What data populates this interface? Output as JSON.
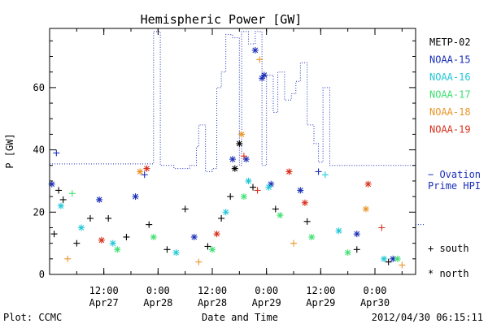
{
  "chart_data": {
    "type": "scatter",
    "title": "Hemispheric Power [GW]",
    "xlabel": "Date and Time",
    "ylabel": "P [GW]",
    "ylim": [
      0,
      79
    ],
    "xlim": [
      "2012-04-27 00:00",
      "2012-04-30 09:00"
    ],
    "x_ticks": [
      {
        "x": "2012-04-27 12:00",
        "time": "12:00",
        "date": "Apr27"
      },
      {
        "x": "2012-04-28 00:00",
        "time": "0:00",
        "date": "Apr28"
      },
      {
        "x": "2012-04-28 12:00",
        "time": "12:00",
        "date": "Apr28"
      },
      {
        "x": "2012-04-29 00:00",
        "time": "0:00",
        "date": "Apr29"
      },
      {
        "x": "2012-04-29 12:00",
        "time": "12:00",
        "date": "Apr29"
      },
      {
        "x": "2012-04-30 00:00",
        "time": "0:00",
        "date": "Apr30"
      }
    ],
    "y_ticks": [
      0,
      20,
      40,
      60
    ],
    "grid": false,
    "legend_position": "right",
    "series": [
      {
        "name": "METP-02",
        "color": "#000000",
        "points": [
          [
            "2012-04-27 02:00",
            27,
            "+"
          ],
          [
            "2012-04-27 03:00",
            24,
            "+"
          ],
          [
            "2012-04-27 01:00",
            13,
            "+"
          ],
          [
            "2012-04-27 09:00",
            18,
            "+"
          ],
          [
            "2012-04-27 13:00",
            18,
            "+"
          ],
          [
            "2012-04-27 17:00",
            12,
            "+"
          ],
          [
            "2012-04-27 22:00",
            16,
            "+"
          ],
          [
            "2012-04-28 06:00",
            21,
            "+"
          ],
          [
            "2012-04-28 14:00",
            18,
            "+"
          ],
          [
            "2012-04-28 17:00",
            34,
            "*"
          ],
          [
            "2012-04-28 18:00",
            42,
            "*"
          ],
          [
            "2012-04-28 16:00",
            25,
            "+"
          ],
          [
            "2012-04-28 21:00",
            28,
            "+"
          ],
          [
            "2012-04-29 02:00",
            21,
            "+"
          ],
          [
            "2012-04-29 09:00",
            17,
            "+"
          ],
          [
            "2012-04-29 20:00",
            8,
            "+"
          ],
          [
            "2012-04-30 03:00",
            4,
            "+"
          ],
          [
            "2012-04-27 06:00",
            10,
            "+"
          ],
          [
            "2012-04-28 02:00",
            8,
            "+"
          ],
          [
            "2012-04-28 11:00",
            9,
            "+"
          ]
        ]
      },
      {
        "name": "NOAA-15",
        "color": "#1b2fb8",
        "points": [
          [
            "2012-04-27 00:30",
            29,
            "*"
          ],
          [
            "2012-04-27 01:30",
            39,
            "+"
          ],
          [
            "2012-04-27 11:00",
            24,
            "*"
          ],
          [
            "2012-04-27 19:00",
            25,
            "*"
          ],
          [
            "2012-04-27 21:00",
            32,
            "+"
          ],
          [
            "2012-04-28 08:00",
            12,
            "*"
          ],
          [
            "2012-04-28 16:30",
            37,
            "*"
          ],
          [
            "2012-04-28 19:30",
            37,
            "*"
          ],
          [
            "2012-04-28 21:30",
            72,
            "*"
          ],
          [
            "2012-04-28 23:00",
            63,
            "*"
          ],
          [
            "2012-04-28 23:30",
            64,
            "*"
          ],
          [
            "2012-04-29 01:00",
            29,
            "*"
          ],
          [
            "2012-04-29 07:30",
            27,
            "*"
          ],
          [
            "2012-04-29 11:30",
            33,
            "+"
          ],
          [
            "2012-04-29 20:00",
            13,
            "*"
          ],
          [
            "2012-04-30 04:00",
            5,
            "*"
          ]
        ]
      },
      {
        "name": "NOAA-16",
        "color": "#22c8d8",
        "points": [
          [
            "2012-04-27 07:00",
            15,
            "*"
          ],
          [
            "2012-04-27 14:00",
            10,
            "*"
          ],
          [
            "2012-04-28 04:00",
            7,
            "*"
          ],
          [
            "2012-04-28 15:00",
            20,
            "*"
          ],
          [
            "2012-04-28 20:00",
            30,
            "*"
          ],
          [
            "2012-04-29 00:30",
            28,
            "*"
          ],
          [
            "2012-04-29 13:00",
            32,
            "+"
          ],
          [
            "2012-04-29 16:00",
            14,
            "*"
          ],
          [
            "2012-04-30 02:00",
            5,
            "*"
          ],
          [
            "2012-04-27 02:30",
            22,
            "*"
          ]
        ]
      },
      {
        "name": "NOAA-17",
        "color": "#3ee070",
        "points": [
          [
            "2012-04-27 05:00",
            26,
            "+"
          ],
          [
            "2012-04-27 15:00",
            8,
            "*"
          ],
          [
            "2012-04-27 23:00",
            12,
            "*"
          ],
          [
            "2012-04-28 12:00",
            8,
            "*"
          ],
          [
            "2012-04-28 19:00",
            25,
            "*"
          ],
          [
            "2012-04-29 03:00",
            19,
            "*"
          ],
          [
            "2012-04-29 10:00",
            12,
            "*"
          ],
          [
            "2012-04-29 18:00",
            7,
            "*"
          ],
          [
            "2012-04-30 05:00",
            5,
            "*"
          ]
        ]
      },
      {
        "name": "NOAA-18",
        "color": "#e8962a",
        "points": [
          [
            "2012-04-27 20:00",
            33,
            "*"
          ],
          [
            "2012-04-28 18:30",
            45,
            "*"
          ],
          [
            "2012-04-28 22:30",
            69,
            "+"
          ],
          [
            "2012-04-29 22:00",
            21,
            "*"
          ],
          [
            "2012-04-27 04:00",
            5,
            "+"
          ],
          [
            "2012-04-28 09:00",
            4,
            "+"
          ],
          [
            "2012-04-29 06:00",
            10,
            "+"
          ],
          [
            "2012-04-30 06:00",
            3,
            "+"
          ]
        ]
      },
      {
        "name": "NOAA-19",
        "color": "#d8301c",
        "points": [
          [
            "2012-04-27 21:30",
            34,
            "*"
          ],
          [
            "2012-04-28 19:00",
            38,
            "+"
          ],
          [
            "2012-04-28 22:00",
            27,
            "+"
          ],
          [
            "2012-04-29 05:00",
            33,
            "*"
          ],
          [
            "2012-04-29 08:30",
            23,
            "*"
          ],
          [
            "2012-04-29 22:30",
            29,
            "*"
          ],
          [
            "2012-04-30 01:30",
            15,
            "+"
          ],
          [
            "2012-04-28 13:00",
            13,
            "*"
          ],
          [
            "2012-04-27 11:30",
            11,
            "*"
          ]
        ]
      }
    ],
    "ovation": {
      "name": "Ovation Prime HPI",
      "color": "#1b2fb8",
      "style": "dotted",
      "points": [
        [
          "2012-04-27 00:00",
          35.5
        ],
        [
          "2012-04-27 22:30",
          35.5
        ],
        [
          "2012-04-27 23:00",
          78
        ],
        [
          "2012-04-28 00:00",
          78
        ],
        [
          "2012-04-28 00:30",
          35
        ],
        [
          "2012-04-28 03:00",
          35
        ],
        [
          "2012-04-28 03:30",
          34
        ],
        [
          "2012-04-28 06:00",
          34
        ],
        [
          "2012-04-28 07:00",
          35
        ],
        [
          "2012-04-28 08:00",
          35
        ],
        [
          "2012-04-28 08:30",
          41
        ],
        [
          "2012-04-28 09:00",
          48
        ],
        [
          "2012-04-28 10:00",
          48
        ],
        [
          "2012-04-28 10:30",
          33
        ],
        [
          "2012-04-28 11:30",
          33
        ],
        [
          "2012-04-28 12:00",
          34
        ],
        [
          "2012-04-28 12:30",
          34
        ],
        [
          "2012-04-28 13:00",
          60
        ],
        [
          "2012-04-28 14:00",
          65
        ],
        [
          "2012-04-28 15:00",
          77
        ],
        [
          "2012-04-28 16:00",
          77
        ],
        [
          "2012-04-28 16:30",
          76
        ],
        [
          "2012-04-28 17:30",
          76
        ],
        [
          "2012-04-28 18:00",
          35
        ],
        [
          "2012-04-28 18:30",
          78
        ],
        [
          "2012-04-28 19:30",
          78
        ],
        [
          "2012-04-28 20:00",
          74
        ],
        [
          "2012-04-28 21:00",
          74
        ],
        [
          "2012-04-28 21:30",
          78
        ],
        [
          "2012-04-28 22:30",
          78
        ],
        [
          "2012-04-28 23:00",
          35
        ],
        [
          "2012-04-28 23:30",
          35
        ],
        [
          "2012-04-29 00:00",
          64
        ],
        [
          "2012-04-29 01:00",
          64
        ],
        [
          "2012-04-29 01:30",
          52
        ],
        [
          "2012-04-29 02:00",
          52
        ],
        [
          "2012-04-29 02:30",
          65
        ],
        [
          "2012-04-29 03:30",
          65
        ],
        [
          "2012-04-29 04:00",
          56
        ],
        [
          "2012-04-29 05:00",
          56
        ],
        [
          "2012-04-29 05:30",
          58
        ],
        [
          "2012-04-29 06:00",
          58
        ],
        [
          "2012-04-29 06:30",
          62
        ],
        [
          "2012-04-29 07:00",
          62
        ],
        [
          "2012-04-29 07:30",
          68
        ],
        [
          "2012-04-29 08:30",
          68
        ],
        [
          "2012-04-29 09:00",
          48
        ],
        [
          "2012-04-29 10:00",
          48
        ],
        [
          "2012-04-29 10:30",
          42
        ],
        [
          "2012-04-29 11:00",
          42
        ],
        [
          "2012-04-29 11:30",
          36
        ],
        [
          "2012-04-29 12:00",
          36
        ],
        [
          "2012-04-29 12:30",
          60
        ],
        [
          "2012-04-29 13:30",
          60
        ],
        [
          "2012-04-29 14:00",
          35
        ],
        [
          "2012-04-30 09:00",
          35
        ]
      ]
    },
    "legend_symbols": [
      {
        "symbol": "+",
        "label": "south"
      },
      {
        "symbol": "*",
        "label": "north"
      }
    ]
  },
  "footer": {
    "left": "Plot: CCMC",
    "right": "2012/04/30 06:15:11"
  }
}
